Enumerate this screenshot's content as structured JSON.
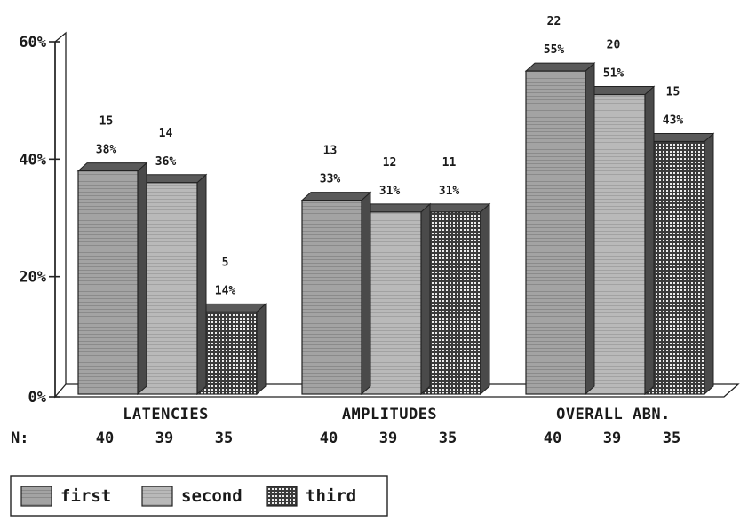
{
  "chart_data": {
    "type": "bar",
    "categories": [
      "LATENCIES",
      "AMPLITUDES",
      "OVERALL ABN."
    ],
    "series": [
      {
        "name": "first",
        "values": [
          38,
          33,
          55
        ],
        "counts": [
          "15",
          "13",
          "22"
        ],
        "labels": [
          "38%",
          "33%",
          "55%"
        ],
        "n": [
          "40",
          "40",
          "40"
        ]
      },
      {
        "name": "second",
        "values": [
          36,
          31,
          51
        ],
        "counts": [
          "14",
          "12",
          "20"
        ],
        "labels": [
          "36%",
          "31%",
          "51%"
        ],
        "n": [
          "39",
          "39",
          "39"
        ]
      },
      {
        "name": "third",
        "values": [
          14,
          31,
          43
        ],
        "counts": [
          "5",
          "11",
          "15"
        ],
        "labels": [
          "14%",
          "31%",
          "43%"
        ],
        "n": [
          "35",
          "35",
          "35"
        ]
      }
    ],
    "y_ticks": [
      "0%",
      "20%",
      "40%",
      "60%"
    ],
    "ylim": [
      0,
      60
    ],
    "n_label": "N:",
    "legend_position": "bottom-left",
    "grid": false
  },
  "colors": {
    "first_front": "#9a9a9a",
    "second_front": "#b4b4b4",
    "third_front": "#8c8c8c",
    "side": "#4a4a4a",
    "top": "#5a5a5a"
  }
}
